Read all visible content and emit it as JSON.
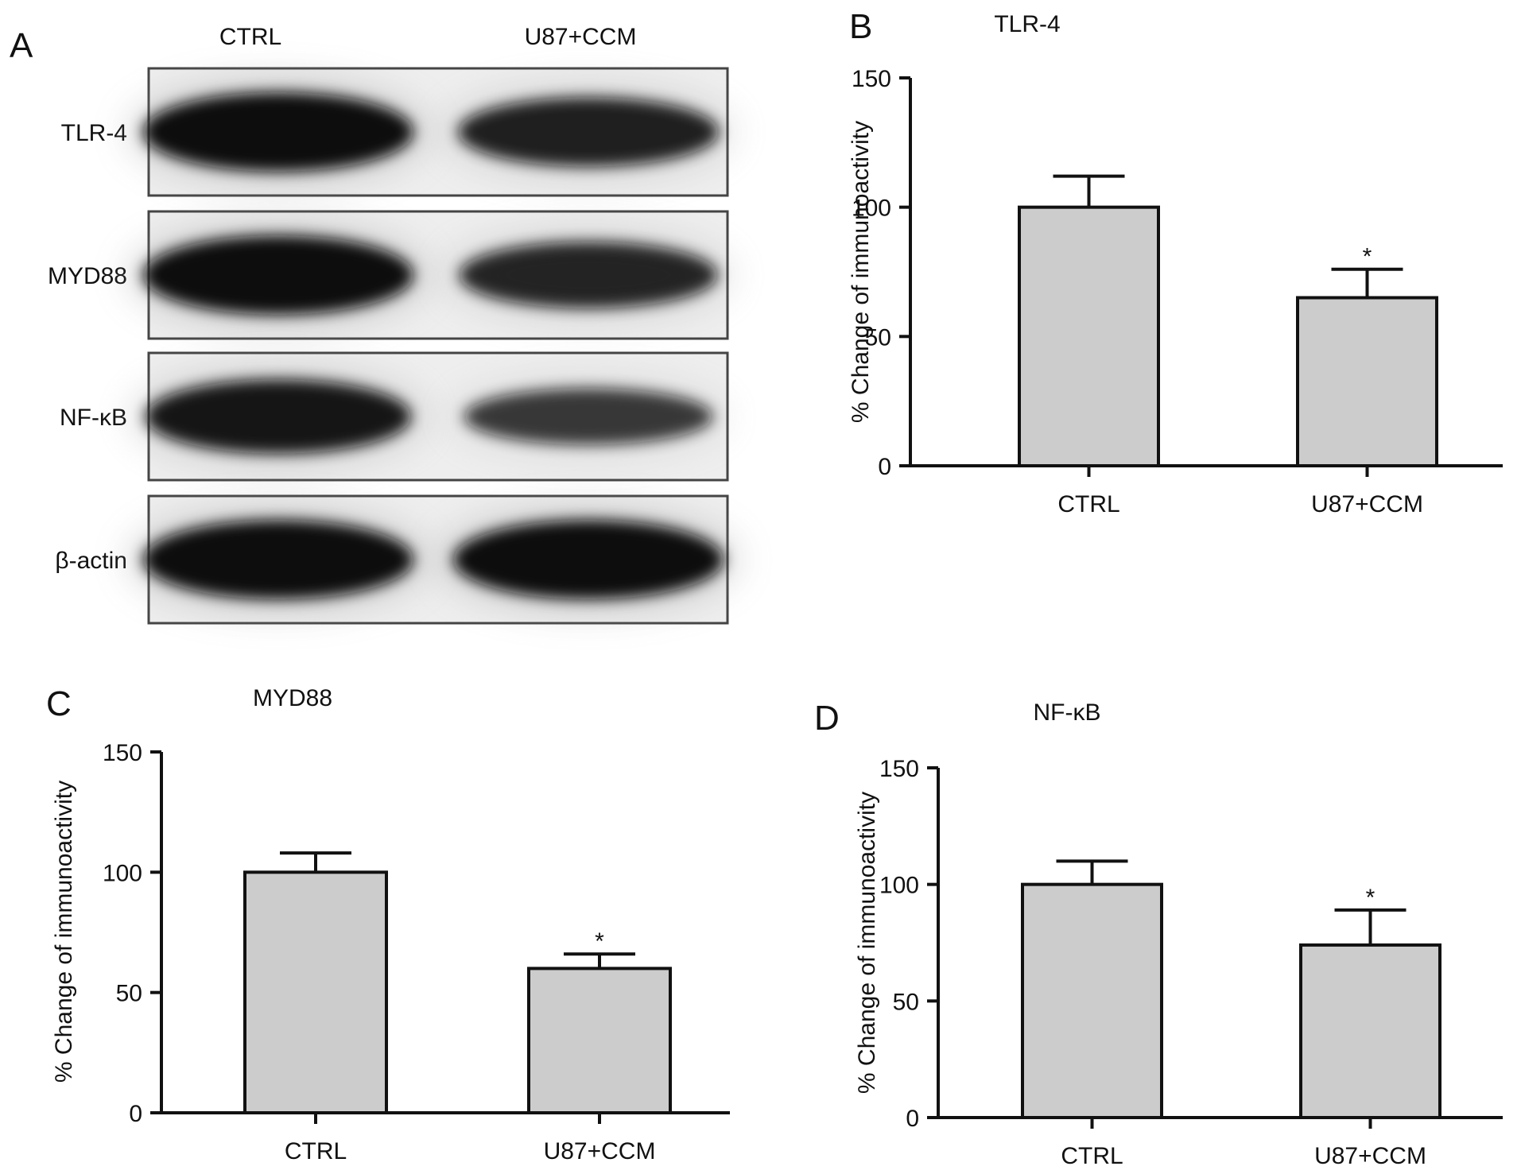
{
  "panel_a": {
    "letter": "A",
    "lanes": [
      "CTRL",
      "U87+CCM"
    ],
    "rows": [
      {
        "label": "TLR-4",
        "intensity": [
          1.0,
          0.8
        ]
      },
      {
        "label": "MYD88",
        "intensity": [
          1.0,
          0.75
        ]
      },
      {
        "label": "NF-κB",
        "intensity": [
          0.9,
          0.55
        ]
      },
      {
        "label": "β-actin",
        "intensity": [
          1.0,
          1.0
        ]
      }
    ],
    "colors": {
      "band": "#0a0a0a",
      "membrane": "#eeeeee",
      "frame": "#444444"
    }
  },
  "chart_data": [
    {
      "letter": "B",
      "type": "bar",
      "title": "TLR-4",
      "ylabel": "% Change of immunoactivity",
      "xlabel": "",
      "categories": [
        "CTRL",
        "U87+CCM"
      ],
      "values": [
        100,
        65
      ],
      "errors": [
        12,
        11
      ],
      "significance": [
        "",
        "*"
      ],
      "ylim": [
        0,
        150
      ],
      "yticks": [
        0,
        50,
        100,
        150
      ],
      "bar_color": "#cccccc"
    },
    {
      "letter": "C",
      "type": "bar",
      "title": "MYD88",
      "ylabel": "% Change of immunoactivity",
      "xlabel": "",
      "categories": [
        "CTRL",
        "U87+CCM"
      ],
      "values": [
        100,
        60
      ],
      "errors": [
        8,
        6
      ],
      "significance": [
        "",
        "*"
      ],
      "ylim": [
        0,
        150
      ],
      "yticks": [
        0,
        50,
        100,
        150
      ],
      "bar_color": "#cccccc"
    },
    {
      "letter": "D",
      "type": "bar",
      "title": "NF-κB",
      "ylabel": "% Change of immunoactivity",
      "xlabel": "",
      "categories": [
        "CTRL",
        "U87+CCM"
      ],
      "values": [
        100,
        74
      ],
      "errors": [
        10,
        15
      ],
      "significance": [
        "",
        "*"
      ],
      "ylim": [
        0,
        150
      ],
      "yticks": [
        0,
        50,
        100,
        150
      ],
      "bar_color": "#cccccc"
    }
  ]
}
